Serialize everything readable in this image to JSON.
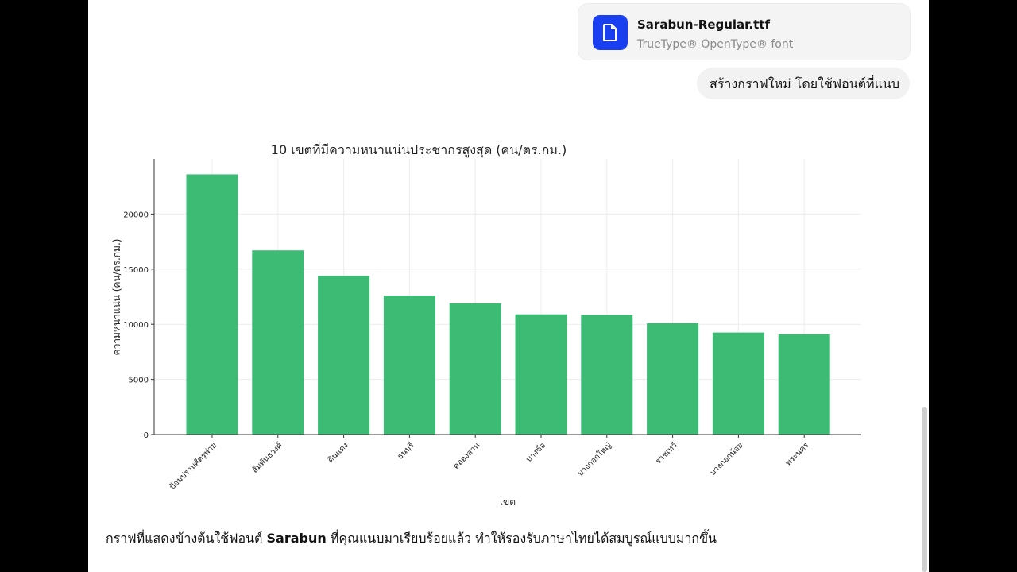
{
  "attachment": {
    "file_name": "Sarabun-Regular.ttf",
    "file_type": "TrueType® OpenType® font",
    "icon": "document-icon",
    "icon_color": "#1a3ff0"
  },
  "user_message": "สร้างกราฟใหม่ โดยใช้ฟอนต์ที่แนบ",
  "assistant_reply": {
    "before": "กราฟที่แสดงข้างต้นใช้ฟอนต์ ",
    "bold": "Sarabun",
    "after": " ที่คุณแนบมาเรียบร้อยแล้ว ทำให้รองรับภาษาไทยได้สมบูรณ์แบบมากขึ้น"
  },
  "chart_data": {
    "type": "bar",
    "title": "10 เขตที่มีความหนาแน่นประชากรสูงสุด (คน/ตร.กม.)",
    "xlabel": "เขต",
    "ylabel": "ความหนาแน่น (คน/ตร.กม.)",
    "categories": [
      "ป้อมปราบศัตรูพ่าย",
      "สัมพันธวงศ์",
      "ดินแดง",
      "ธนบุรี",
      "คลองสาน",
      "บางซื่อ",
      "บางกอกใหญ่",
      "ราชเทวี",
      "บางกอกน้อย",
      "พระนคร"
    ],
    "values": [
      23600,
      16700,
      14400,
      12600,
      11900,
      10900,
      10850,
      10100,
      9250,
      9100
    ],
    "ylim": [
      0,
      25000
    ],
    "yticks": [
      "0",
      "5000",
      "10000",
      "15000",
      "20000"
    ],
    "bar_color": "#3dba74",
    "grid": true,
    "legend": "none"
  }
}
